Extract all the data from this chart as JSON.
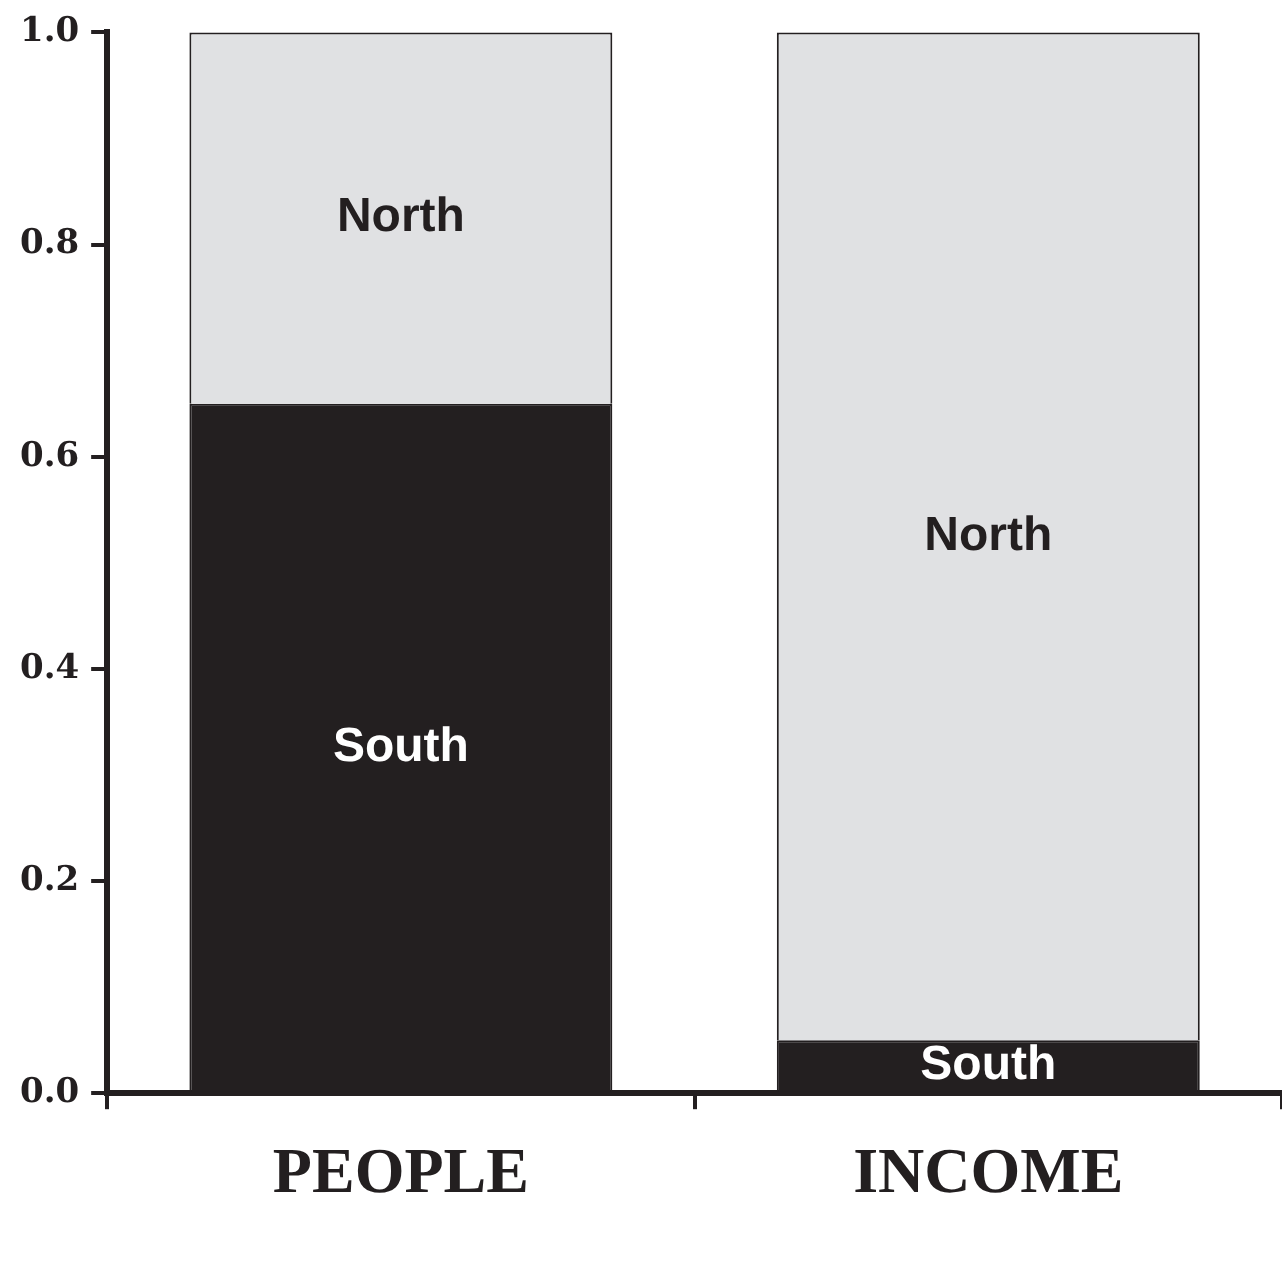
{
  "chart_data": {
    "type": "bar",
    "stacked": true,
    "categories": [
      "PEOPLE",
      "INCOME"
    ],
    "series": [
      {
        "name": "South",
        "color": "#231f20",
        "values": [
          0.65,
          0.05
        ]
      },
      {
        "name": "North",
        "color": "#e0e1e3",
        "values": [
          0.35,
          0.95
        ]
      }
    ],
    "ylim": [
      0,
      1
    ],
    "yticks": [
      {
        "value": 0,
        "label": "0.0"
      },
      {
        "value": 0.2,
        "label": "0.2"
      },
      {
        "value": 0.4,
        "label": "0.4"
      },
      {
        "value": 0.6,
        "label": "0.6"
      },
      {
        "value": 0.8,
        "label": "0.8"
      },
      {
        "value": 1,
        "label": "1.0"
      }
    ],
    "grid": false,
    "legend": false
  }
}
